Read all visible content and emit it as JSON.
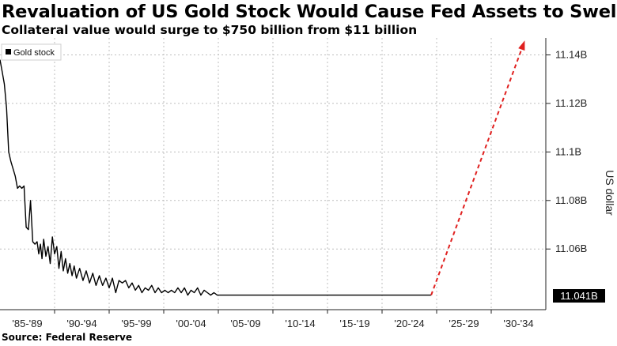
{
  "title": "Revaluation of US Gold Stock Would Cause Fed Assets to Swell",
  "subtitle": "Collateral value would surge to $750 billion from $11 billion",
  "source": "Source: Federal Reserve",
  "colors": {
    "series_line": "#000000",
    "projection": "#e0201f",
    "gridline": "#bdbdbd",
    "badge_bg": "#000000",
    "badge_text": "#ffffff"
  },
  "chart_data": {
    "type": "line",
    "ylabel": "US dollar",
    "ylim": [
      11.035,
      11.147
    ],
    "xlim": [
      1985,
      2035
    ],
    "grid": true,
    "legend_position": "top-left",
    "x_tick_labels": [
      "'85-'89",
      "'90-'94",
      "'95-'99",
      "'00-'04",
      "'05-'09",
      "'10-'14",
      "'15-'19",
      "'20-'24",
      "'25-'29",
      "'30-'34"
    ],
    "y_ticks": [
      {
        "value": 11.06,
        "label": "11.06B"
      },
      {
        "value": 11.08,
        "label": "11.08B"
      },
      {
        "value": 11.1,
        "label": "11.1B"
      },
      {
        "value": 11.12,
        "label": "11.12B"
      },
      {
        "value": 11.14,
        "label": "11.14B"
      }
    ],
    "last_value_label": "11.041B",
    "last_value": 11.041,
    "series": [
      {
        "name": "Gold stock",
        "x": [
          1985.0,
          1985.2,
          1985.4,
          1985.6,
          1985.8,
          1986.0,
          1986.2,
          1986.4,
          1986.6,
          1986.8,
          1987.0,
          1987.2,
          1987.4,
          1987.6,
          1987.8,
          1988.0,
          1988.2,
          1988.4,
          1988.55,
          1988.7,
          1988.85,
          1989.0,
          1989.2,
          1989.4,
          1989.6,
          1989.8,
          1990.0,
          1990.2,
          1990.4,
          1990.6,
          1990.8,
          1991.0,
          1991.2,
          1991.4,
          1991.6,
          1991.8,
          1992.0,
          1992.3,
          1992.6,
          1992.9,
          1993.2,
          1993.5,
          1993.8,
          1994.1,
          1994.4,
          1994.7,
          1995.0,
          1995.3,
          1995.6,
          1995.9,
          1996.2,
          1996.5,
          1996.8,
          1997.1,
          1997.4,
          1997.7,
          1998.0,
          1998.3,
          1998.6,
          1998.9,
          1999.2,
          1999.5,
          1999.8,
          2000.1,
          2000.4,
          2000.7,
          2001.0,
          2001.3,
          2001.6,
          2001.9,
          2002.2,
          2002.5,
          2002.8,
          2003.1,
          2003.4,
          2003.7,
          2004.0,
          2004.3,
          2004.6,
          2004.9,
          2005.2,
          2005.5,
          2005.8,
          2006.1,
          2006.4,
          2006.7,
          2007.0,
          2010,
          2015,
          2020,
          2024.5
        ],
        "y": [
          11.138,
          11.133,
          11.128,
          11.118,
          11.1,
          11.096,
          11.093,
          11.09,
          11.085,
          11.086,
          11.085,
          11.086,
          11.069,
          11.068,
          11.08,
          11.063,
          11.062,
          11.063,
          11.058,
          11.062,
          11.056,
          11.064,
          11.057,
          11.061,
          11.054,
          11.065,
          11.058,
          11.061,
          11.052,
          11.059,
          11.051,
          11.056,
          11.05,
          11.054,
          11.049,
          11.053,
          11.048,
          11.052,
          11.047,
          11.051,
          11.046,
          11.05,
          11.045,
          11.049,
          11.045,
          11.048,
          11.044,
          11.048,
          11.042,
          11.047,
          11.046,
          11.047,
          11.044,
          11.046,
          11.043,
          11.045,
          11.042,
          11.044,
          11.043,
          11.045,
          11.042,
          11.044,
          11.042,
          11.043,
          11.042,
          11.043,
          11.042,
          11.044,
          11.042,
          11.044,
          11.041,
          11.043,
          11.042,
          11.044,
          11.041,
          11.043,
          11.042,
          11.041,
          11.042,
          11.041,
          11.041,
          11.041,
          11.041,
          11.041,
          11.041,
          11.041,
          11.041,
          11.041,
          11.041,
          11.041,
          11.041
        ]
      },
      {
        "name": "",
        "style": "dashed-arrow",
        "x": [
          2024.5,
          2033.0
        ],
        "y": [
          11.041,
          11.145
        ]
      }
    ]
  }
}
